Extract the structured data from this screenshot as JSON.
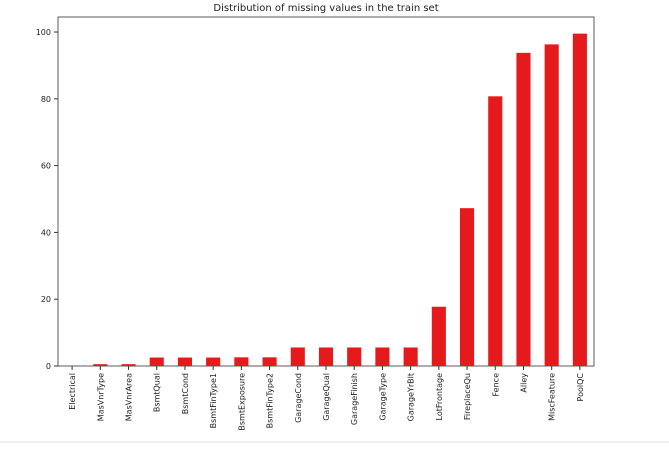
{
  "chart_data": {
    "type": "bar",
    "title": "Distribution of missing values in the train set",
    "categories": [
      "Electrical",
      "MasVnrType",
      "MasVnrArea",
      "BsmtQual",
      "BsmtCond",
      "BsmtFinType1",
      "BsmtExposure",
      "BsmtFinType2",
      "GarageCond",
      "GarageQual",
      "GarageFinish",
      "GarageType",
      "GarageYrBlt",
      "LotFrontage",
      "FireplaceQu",
      "Fence",
      "Alley",
      "MiscFeature",
      "PoolQC"
    ],
    "values": [
      0.07,
      0.55,
      0.55,
      2.53,
      2.53,
      2.53,
      2.6,
      2.6,
      5.55,
      5.55,
      5.55,
      5.55,
      5.55,
      17.74,
      47.26,
      80.75,
      93.77,
      96.3,
      99.52
    ],
    "color": "#e41a1c",
    "ylim": [
      0,
      104.5
    ],
    "yticks": [
      0,
      20,
      40,
      60,
      80,
      100
    ],
    "grid": false
  }
}
